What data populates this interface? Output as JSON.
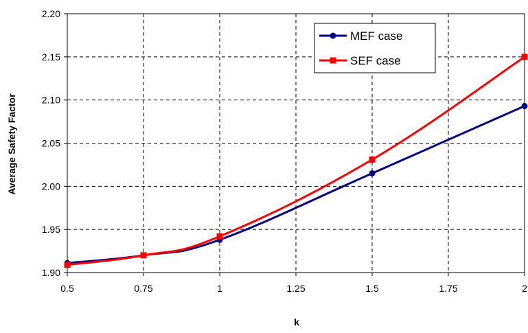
{
  "chart_data": {
    "type": "line",
    "xlabel": "k",
    "ylabel": "Average Safety Factor",
    "x_ticks": [
      "0.5",
      "0.75",
      "1",
      "1.25",
      "1.5",
      "1.75",
      "2"
    ],
    "y_ticks": [
      "1.90",
      "1.95",
      "2.00",
      "2.05",
      "2.10",
      "2.15",
      "2.20"
    ],
    "xlim": [
      0.5,
      2
    ],
    "ylim": [
      1.9,
      2.2
    ],
    "grid": true,
    "legend_position": "top-right",
    "series": [
      {
        "name": "MEF case",
        "color": "#000080",
        "marker": "circle",
        "x": [
          0.5,
          0.75,
          1,
          1.5,
          2
        ],
        "y": [
          1.911,
          1.92,
          1.938,
          2.015,
          2.093
        ]
      },
      {
        "name": "SEF case",
        "color": "#ff0000",
        "marker": "square",
        "x": [
          0.5,
          0.75,
          1,
          1.5,
          2
        ],
        "y": [
          1.909,
          1.92,
          1.942,
          2.031,
          2.15
        ]
      }
    ]
  }
}
